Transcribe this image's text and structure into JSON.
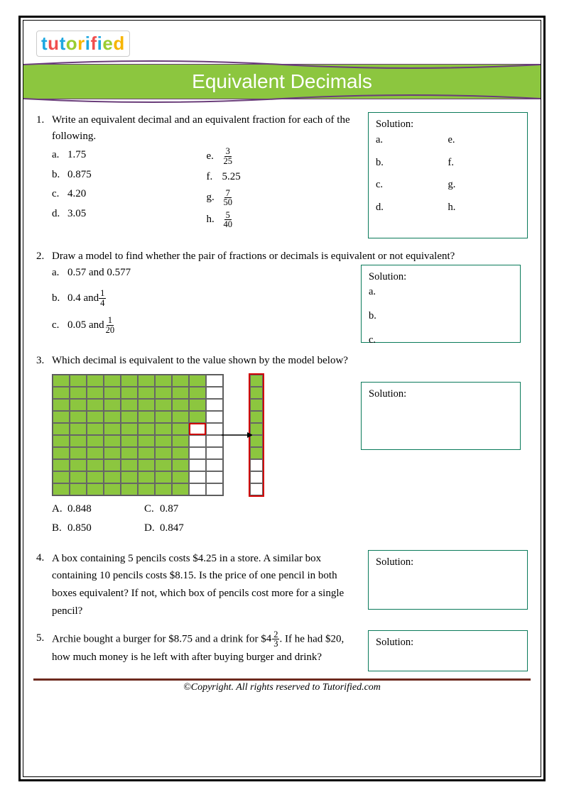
{
  "logo_text": "tutorified",
  "title": "Equivalent Decimals",
  "q1": {
    "num": "1.",
    "prompt": "Write an equivalent decimal and an equivalent fraction for each of the following.",
    "left": [
      {
        "l": "a.",
        "v": "1.75"
      },
      {
        "l": "b.",
        "v": "0.875"
      },
      {
        "l": "c.",
        "v": "4.20"
      },
      {
        "l": "d.",
        "v": "3.05"
      }
    ],
    "right": [
      {
        "l": "e.",
        "frac": {
          "n": "3",
          "d": "25"
        }
      },
      {
        "l": "f.",
        "v": "5.25"
      },
      {
        "l": "g.",
        "frac": {
          "n": "7",
          "d": "50"
        }
      },
      {
        "l": "h.",
        "frac": {
          "n": "5",
          "d": "40"
        }
      }
    ],
    "sol_title": "Solution:",
    "sol_left": [
      "a.",
      "b.",
      "c.",
      "d."
    ],
    "sol_right": [
      "e.",
      "f.",
      "g.",
      "h."
    ]
  },
  "q2": {
    "num": "2.",
    "prompt": "Draw a model to find whether the pair of fractions or decimals is equivalent or not equivalent?",
    "items": [
      {
        "l": "a.",
        "t1": "0.57 and 0.577"
      },
      {
        "l": "b.",
        "t1": "0.4 and ",
        "frac": {
          "n": "1",
          "d": "4"
        }
      },
      {
        "l": "c.",
        "t1": "0.05 and ",
        "frac": {
          "n": "1",
          "d": "20"
        }
      }
    ],
    "sol_title": "Solution:",
    "sol_items": [
      "a.",
      "b.",
      "c."
    ]
  },
  "q3": {
    "num": "3.",
    "prompt": "Which decimal is equivalent to the value shown by the model below?",
    "grid_filled_cols": 8,
    "grid_partial_row": 5,
    "strip_filled": 7,
    "options_left": [
      {
        "l": "A.",
        "v": "0.848"
      },
      {
        "l": "B.",
        "v": "0.850"
      }
    ],
    "options_right": [
      {
        "l": "C.",
        "v": "0.87"
      },
      {
        "l": "D.",
        "v": "0.847"
      }
    ],
    "sol_title": "Solution:"
  },
  "q4": {
    "num": "4.",
    "prompt": "A box containing 5 pencils costs $4.25 in a store. A similar box containing 10 pencils costs $8.15. Is the price of one pencil in both boxes equivalent? If not, which box of pencils cost more for a single pencil?",
    "sol_title": "Solution:"
  },
  "q5": {
    "num": "5.",
    "prompt_before": "Archie bought a burger for $8.75 and a drink for $",
    "mixed": {
      "w": "4",
      "n": "2",
      "d": "3"
    },
    "prompt_after": ". If he had $20, how much money is he left with after buying burger and drink?",
    "sol_title": "Solution:"
  },
  "footer": "©Copyright. All rights reserved to Tutorified.com"
}
